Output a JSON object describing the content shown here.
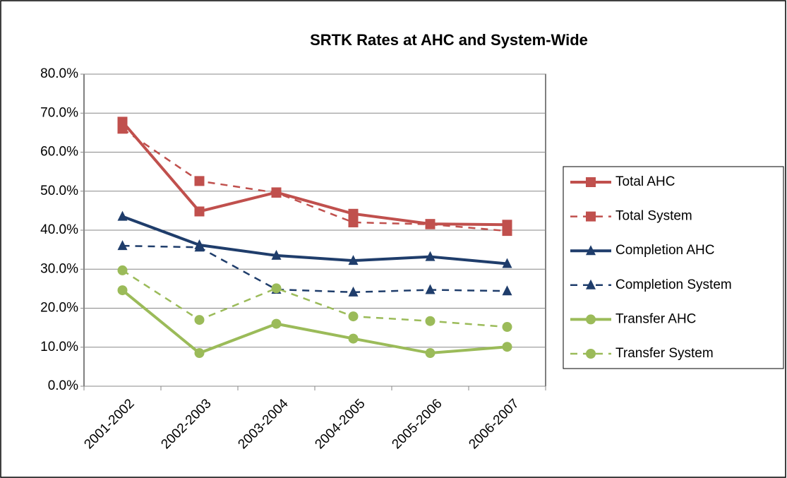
{
  "chart_data": {
    "type": "line",
    "title": "SRTK Rates at AHC and System-Wide",
    "categories": [
      "2001-2002",
      "2002-2003",
      "2003-2004",
      "2004-2005",
      "2005-2006",
      "2006-2007"
    ],
    "series": [
      {
        "name": "Total AHC",
        "color": "#c0504d",
        "marker": "square",
        "dashed": false,
        "values": [
          67.8,
          44.8,
          49.7,
          44.2,
          41.6,
          41.4
        ]
      },
      {
        "name": "Total System",
        "color": "#c0504d",
        "marker": "square",
        "dashed": true,
        "values": [
          66.0,
          52.6,
          49.6,
          42.0,
          41.5,
          39.8
        ]
      },
      {
        "name": "Completion AHC",
        "color": "#1f3d6b",
        "marker": "triangle",
        "dashed": false,
        "values": [
          43.5,
          36.2,
          33.5,
          32.2,
          33.2,
          31.4
        ]
      },
      {
        "name": "Completion System",
        "color": "#1f3d6b",
        "marker": "triangle",
        "dashed": true,
        "values": [
          36.0,
          35.6,
          24.8,
          24.1,
          24.7,
          24.4
        ]
      },
      {
        "name": "Transfer AHC",
        "color": "#9bbb59",
        "marker": "circle",
        "dashed": false,
        "values": [
          24.6,
          8.5,
          16.0,
          12.2,
          8.5,
          10.1
        ]
      },
      {
        "name": "Transfer System",
        "color": "#9bbb59",
        "marker": "circle",
        "dashed": true,
        "values": [
          29.7,
          17.0,
          25.1,
          17.9,
          16.7,
          15.2
        ]
      }
    ],
    "ylim": [
      0,
      80
    ],
    "yticks": [
      {
        "value": 0,
        "label": "0.0%"
      },
      {
        "value": 10,
        "label": "10.0%"
      },
      {
        "value": 20,
        "label": "20.0%"
      },
      {
        "value": 30,
        "label": "30.0%"
      },
      {
        "value": 40,
        "label": "40.0%"
      },
      {
        "value": 50,
        "label": "50.0%"
      },
      {
        "value": 60,
        "label": "60.0%"
      },
      {
        "value": 70,
        "label": "70.0%"
      },
      {
        "value": 80,
        "label": "80.0%"
      }
    ],
    "grid": true,
    "legend": "right"
  }
}
